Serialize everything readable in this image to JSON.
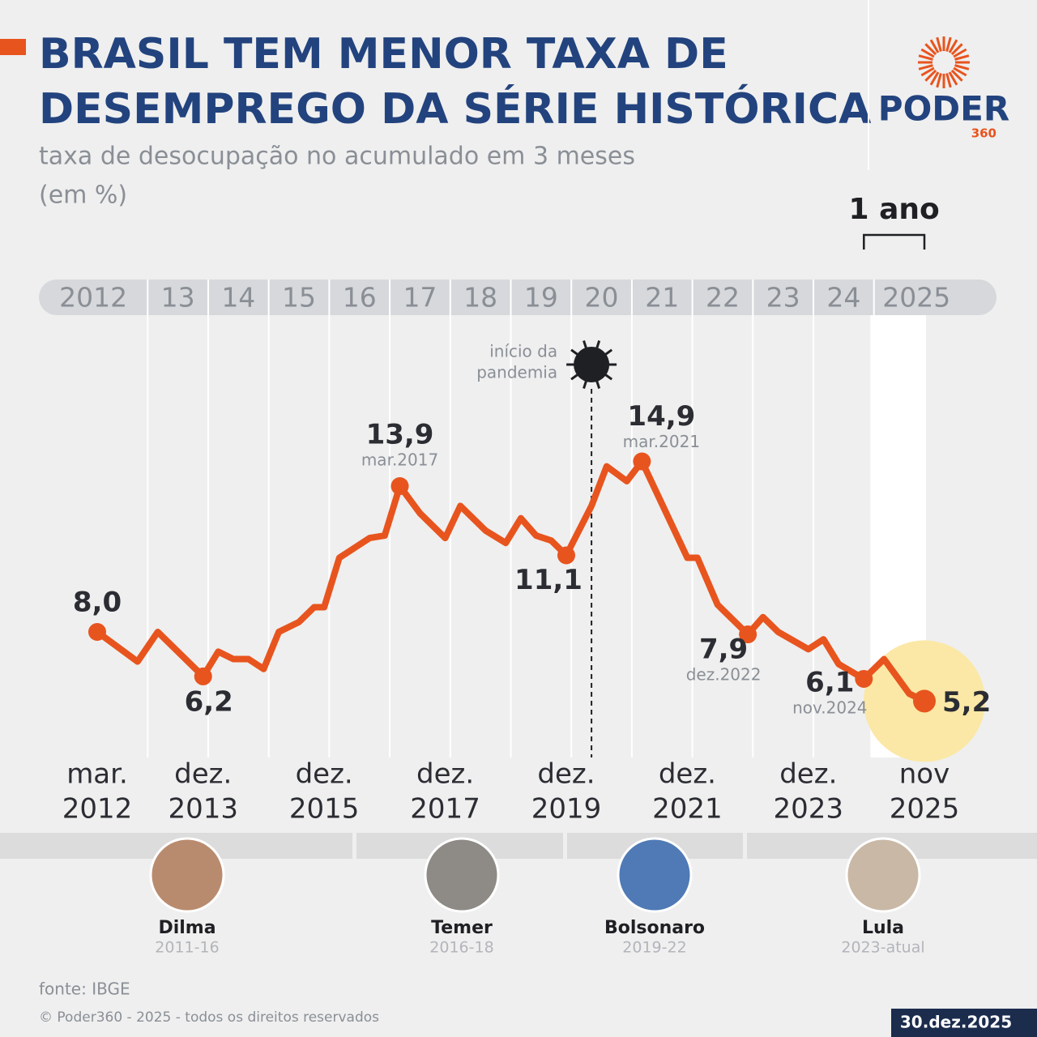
{
  "header": {
    "title_lines": [
      "BRASIL TEM MENOR TAXA DE",
      "DESEMPREGO DA SÉRIE HISTÓRICA"
    ],
    "subtitle_lines": [
      "taxa de desocupação no acumulado em 3 meses",
      "(em %)"
    ],
    "logo": {
      "name": "PODER",
      "number": "360"
    }
  },
  "chart_data": {
    "type": "line",
    "x": [
      "2012-03",
      "2012-11",
      "2013-03",
      "2013-12",
      "2014-03",
      "2014-06",
      "2014-09",
      "2014-12",
      "2015-03",
      "2015-07",
      "2015-10",
      "2015-12",
      "2016-03",
      "2016-06",
      "2016-09",
      "2016-12",
      "2017-03",
      "2017-07",
      "2017-12",
      "2018-03",
      "2018-08",
      "2018-12",
      "2019-03",
      "2019-06",
      "2019-09",
      "2019-12",
      "2020-05",
      "2020-08",
      "2020-12",
      "2021-03",
      "2021-12",
      "2022-02",
      "2022-06",
      "2022-12",
      "2023-03",
      "2023-06",
      "2023-12",
      "2024-03",
      "2024-06",
      "2024-11",
      "2025-03",
      "2025-08",
      "2025-11"
    ],
    "series": [
      {
        "color": "#e8541e",
        "values": [
          8.0,
          6.8,
          8.0,
          6.2,
          7.2,
          6.9,
          6.9,
          6.5,
          8.0,
          8.4,
          9.0,
          9.0,
          11.0,
          11.4,
          11.8,
          11.9,
          13.9,
          12.8,
          11.8,
          13.1,
          12.1,
          11.6,
          12.6,
          11.9,
          11.7,
          11.1,
          13.1,
          14.7,
          14.1,
          14.9,
          11.0,
          11.0,
          9.1,
          7.9,
          8.6,
          8.0,
          7.3,
          7.7,
          6.7,
          6.1,
          6.9,
          5.5,
          5.2
        ],
        "value_labels": [
          "8,0",
          null,
          null,
          "6,2",
          null,
          null,
          null,
          null,
          null,
          null,
          null,
          null,
          null,
          null,
          null,
          null,
          "13,9",
          null,
          null,
          null,
          null,
          null,
          null,
          null,
          null,
          "11,1",
          null,
          null,
          null,
          "14,9",
          null,
          null,
          null,
          "7,9",
          null,
          null,
          null,
          null,
          null,
          "6,1",
          null,
          null,
          "5,2"
        ],
        "date_labels": [
          null,
          null,
          null,
          null,
          null,
          null,
          null,
          null,
          null,
          null,
          null,
          null,
          null,
          null,
          null,
          null,
          "mar.2017",
          null,
          null,
          null,
          null,
          null,
          null,
          null,
          null,
          null,
          null,
          null,
          null,
          "mar.2021",
          null,
          null,
          null,
          "dez.2022",
          null,
          null,
          null,
          null,
          null,
          "nov.2024",
          null,
          null,
          null
        ]
      }
    ],
    "xlim": [
      "2012-03",
      "2025-11"
    ],
    "xticks": [
      {
        "value": "2012-03",
        "label": [
          "mar.",
          "2012"
        ]
      },
      {
        "value": "2013-12",
        "label": [
          "dez.",
          "2013"
        ]
      },
      {
        "value": "2015-12",
        "label": [
          "dez.",
          "2015"
        ]
      },
      {
        "value": "2017-12",
        "label": [
          "dez.",
          "2017"
        ]
      },
      {
        "value": "2019-12",
        "label": [
          "dez.",
          "2019"
        ]
      },
      {
        "value": "2021-12",
        "label": [
          "dez.",
          "2021"
        ]
      },
      {
        "value": "2023-12",
        "label": [
          "dez.",
          "2023"
        ]
      },
      {
        "value": "2025-11",
        "label": [
          "nov",
          "2025"
        ]
      }
    ],
    "year_band": [
      {
        "value": "2012-01",
        "label": "2012"
      },
      {
        "value": "2013-01",
        "label": "13"
      },
      {
        "value": "2014-01",
        "label": "14"
      },
      {
        "value": "2015-01",
        "label": "15"
      },
      {
        "value": "2016-01",
        "label": "16"
      },
      {
        "value": "2017-01",
        "label": "17"
      },
      {
        "value": "2018-01",
        "label": "18"
      },
      {
        "value": "2019-01",
        "label": "19"
      },
      {
        "value": "2020-01",
        "label": "20"
      },
      {
        "value": "2021-01",
        "label": "21"
      },
      {
        "value": "2022-01",
        "label": "22"
      },
      {
        "value": "2023-01",
        "label": "23"
      },
      {
        "value": "2024-01",
        "label": "24"
      },
      {
        "value": "2025-01",
        "label": "2025"
      }
    ],
    "ylim": [
      4,
      16
    ],
    "pandemic": {
      "x": "2020-05",
      "text": [
        "início da",
        "pandemia"
      ]
    },
    "highlight": {
      "label": "1 ano",
      "from": "2024-11",
      "to": "2025-11"
    }
  },
  "presidents": [
    {
      "name": "Dilma",
      "term": "2011-16"
    },
    {
      "name": "Temer",
      "term": "2016-18"
    },
    {
      "name": "Bolsonaro",
      "term": "2019-22"
    },
    {
      "name": "Lula",
      "term": "2023-atual"
    }
  ],
  "footer": {
    "source": "fonte: IBGE",
    "copyright": "© Poder360 - 2025 - todos os direitos reservados",
    "date": "30.dez.2025"
  }
}
